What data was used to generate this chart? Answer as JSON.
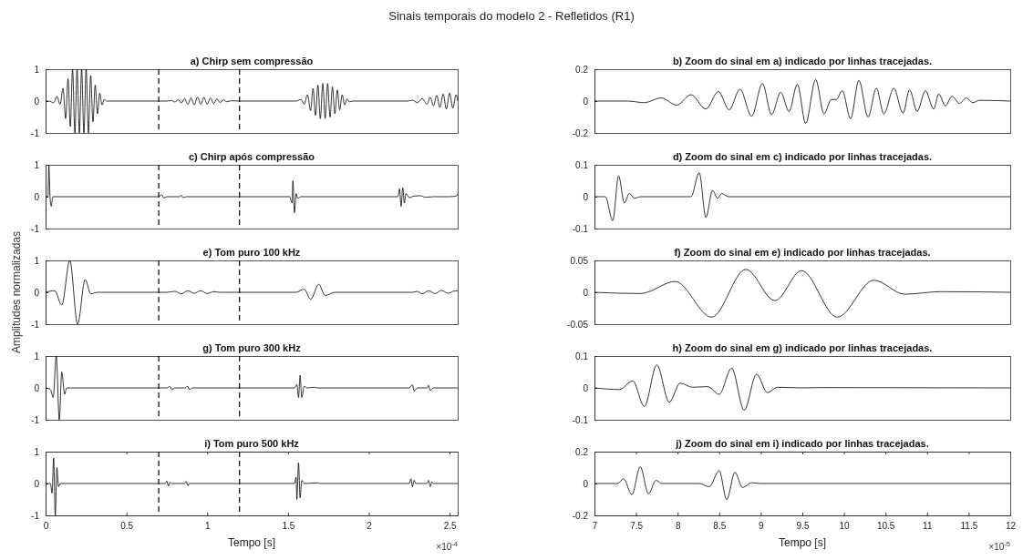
{
  "chart_data": [
    {
      "type": "line",
      "title": "a) Chirp sem compressão",
      "annotations": [
        "Sinais temporais do modelo 2 - Refletidos (R1)"
      ],
      "color": "#000000",
      "xlim": [
        0,
        2.55
      ],
      "ylim": [
        -1,
        1
      ],
      "yticks": [
        -1,
        0,
        1
      ],
      "tick_labels": "y",
      "ref_lines": [
        {
          "axis": "x",
          "value": 0.7,
          "line_style": "dashed"
        },
        {
          "axis": "x",
          "value": 1.2,
          "line_style": "dashed"
        }
      ],
      "x": [
        0,
        0.02,
        0.05,
        0.07,
        0.09,
        0.108,
        0.124,
        0.139,
        0.153,
        0.167,
        0.181,
        0.195,
        0.209,
        0.223,
        0.237,
        0.251,
        0.265,
        0.279,
        0.293,
        0.307,
        0.321,
        0.335,
        0.349,
        0.363,
        0.38,
        0.7,
        0.75,
        0.78,
        0.8,
        0.82,
        0.84,
        0.86,
        0.88,
        0.9,
        0.92,
        0.94,
        0.96,
        0.98,
        1.0,
        1.02,
        1.04,
        1.06,
        1.08,
        1.1,
        1.12,
        1.15,
        1.2,
        1.55,
        1.58,
        1.6,
        1.62,
        1.64,
        1.655,
        1.67,
        1.685,
        1.7,
        1.715,
        1.73,
        1.745,
        1.76,
        1.775,
        1.79,
        1.805,
        1.82,
        1.835,
        1.85,
        1.865,
        1.88,
        1.9,
        2.24,
        2.27,
        2.3,
        2.33,
        2.36,
        2.38,
        2.4,
        2.42,
        2.44,
        2.46,
        2.48,
        2.5,
        2.52,
        2.54,
        2.55
      ],
      "values": [
        0,
        0,
        -0.05,
        0.15,
        -0.1,
        0.4,
        -0.55,
        0.7,
        -0.8,
        1,
        -1,
        1,
        -1,
        1,
        -1,
        1,
        -1,
        0.8,
        -0.65,
        0.5,
        -0.4,
        0.25,
        -0.12,
        0.05,
        0,
        0,
        0,
        0.02,
        -0.03,
        0.05,
        -0.06,
        0.08,
        -0.1,
        0.1,
        -0.12,
        0.13,
        -0.1,
        0.12,
        -0.1,
        0.1,
        -0.08,
        0.07,
        -0.05,
        0.04,
        -0.02,
        0.01,
        0,
        0,
        0.05,
        -0.1,
        0.2,
        -0.3,
        0.4,
        -0.45,
        0.5,
        -0.55,
        0.55,
        -0.55,
        0.55,
        -0.5,
        0.45,
        -0.4,
        0.35,
        -0.28,
        0.2,
        -0.12,
        0.06,
        -0.02,
        0,
        0,
        0.03,
        -0.05,
        0.08,
        -0.1,
        0.12,
        -0.15,
        0.18,
        -0.2,
        0.22,
        -0.25,
        0.25,
        -0.22,
        0.2,
        0
      ]
    },
    {
      "type": "line",
      "title": "b) Zoom do sinal em a) indicado por linhas tracejadas.",
      "color": "#000000",
      "xlim": [
        7,
        12
      ],
      "ylim": [
        -0.2,
        0.2
      ],
      "yticks": [
        -0.2,
        0,
        0.2
      ],
      "tick_labels": "y",
      "x": [
        7,
        7.4,
        7.6,
        7.8,
        7.99,
        8.16,
        8.34,
        8.49,
        8.62,
        8.75,
        8.89,
        9.02,
        9.13,
        9.24,
        9.34,
        9.44,
        9.54,
        9.66,
        9.76,
        9.85,
        9.91,
        9.98,
        10.08,
        10.18,
        10.29,
        10.39,
        10.48,
        10.6,
        10.71,
        10.79,
        10.88,
        10.98,
        11.08,
        11.14,
        11.22,
        11.3,
        11.39,
        11.47,
        11.55,
        11.63,
        12
      ],
      "values": [
        0,
        0,
        -0.01,
        0.02,
        -0.025,
        0.04,
        -0.05,
        0.06,
        -0.055,
        0.075,
        -0.095,
        0.11,
        -0.085,
        0.055,
        -0.065,
        0.105,
        -0.14,
        0.135,
        -0.08,
        0.01,
        0.01,
        0.065,
        -0.11,
        0.13,
        -0.1,
        0.08,
        -0.08,
        0.08,
        -0.075,
        0.07,
        -0.065,
        0.065,
        -0.05,
        0.045,
        -0.03,
        0.03,
        -0.015,
        0.02,
        -0.01,
        0.005,
        0
      ]
    },
    {
      "type": "line",
      "title": "c) Chirp após compressão",
      "color": "#000000",
      "xlim": [
        0,
        2.55
      ],
      "ylim": [
        -1,
        1
      ],
      "yticks": [
        -1,
        0,
        1
      ],
      "tick_labels": "y",
      "ref_lines": [
        {
          "axis": "x",
          "value": 0.7,
          "line_style": "dashed"
        },
        {
          "axis": "x",
          "value": 1.2,
          "line_style": "dashed"
        }
      ],
      "x": [
        0,
        0.015,
        0.02,
        0.028,
        0.035,
        0.045,
        0.7,
        0.72,
        0.73,
        0.75,
        0.83,
        0.84,
        0.85,
        0.87,
        1.51,
        1.525,
        1.53,
        1.54,
        1.55,
        1.56,
        1.58,
        2.18,
        2.19,
        2.2,
        2.21,
        2.22,
        2.23,
        2.25,
        2.28,
        2.32,
        2.35,
        2.4,
        2.5,
        2.54,
        2.55
      ],
      "values": [
        0,
        0,
        1,
        -0.05,
        -0.3,
        0,
        0,
        0.06,
        -0.04,
        0,
        0,
        0.05,
        -0.03,
        0,
        0,
        -0.2,
        0.5,
        -0.5,
        0.1,
        -0.05,
        0,
        0,
        0.25,
        -0.3,
        0.28,
        -0.2,
        0.1,
        -0.03,
        0.02,
        0.03,
        -0.02,
        0,
        0,
        0.02,
        0.1
      ]
    },
    {
      "type": "line",
      "title": "d) Zoom do sinal em c) indicado por linhas tracejadas.",
      "color": "#000000",
      "xlim": [
        7,
        12
      ],
      "ylim": [
        -0.1,
        0.1
      ],
      "yticks": [
        -0.1,
        0,
        0.1
      ],
      "tick_labels": "y",
      "x": [
        7,
        7.13,
        7.22,
        7.29,
        7.36,
        7.42,
        7.48,
        7.56,
        8.16,
        8.26,
        8.34,
        8.42,
        8.48,
        8.53,
        8.61,
        12
      ],
      "values": [
        0,
        0,
        -0.075,
        0.065,
        -0.02,
        0.01,
        -0.005,
        0,
        0,
        0.075,
        -0.065,
        0.02,
        -0.005,
        0.01,
        0,
        0
      ]
    },
    {
      "type": "line",
      "title": "e) Tom puro 100 kHz",
      "ylabel": "Amplitudes normalizadas",
      "color": "#000000",
      "xlim": [
        0,
        2.55
      ],
      "ylim": [
        -1,
        1
      ],
      "yticks": [
        -1,
        0,
        1
      ],
      "tick_labels": "y",
      "ref_lines": [
        {
          "axis": "x",
          "value": 0.7,
          "line_style": "dashed"
        },
        {
          "axis": "x",
          "value": 1.2,
          "line_style": "dashed"
        }
      ],
      "x": [
        0,
        0.056,
        0.1,
        0.15,
        0.198,
        0.245,
        0.28,
        0.32,
        0.75,
        0.8,
        0.84,
        0.88,
        0.92,
        0.96,
        1.0,
        1.04,
        1.08,
        1.55,
        1.6,
        1.64,
        1.69,
        1.73,
        1.79,
        2.27,
        2.3,
        2.33,
        2.37,
        2.41,
        2.45,
        2.49,
        2.52,
        2.55
      ],
      "values": [
        0,
        0.05,
        -0.4,
        1,
        -1,
        0.4,
        -0.05,
        0,
        0,
        0.03,
        -0.05,
        0.05,
        -0.03,
        0.05,
        -0.04,
        0.02,
        0,
        0,
        0.1,
        -0.22,
        0.25,
        -0.1,
        0,
        0,
        0.03,
        -0.05,
        0.05,
        -0.04,
        0.06,
        -0.03,
        0.03,
        0.05
      ]
    },
    {
      "type": "line",
      "title": "f) Zoom do sinal em e) indicado por linhas tracejadas.",
      "color": "#000000",
      "xlim": [
        7,
        12
      ],
      "ylim": [
        -0.05,
        0.05
      ],
      "yticks": [
        -0.05,
        0,
        0.05
      ],
      "tick_labels": "y",
      "x": [
        7,
        7.56,
        7.63,
        7.97,
        8.41,
        8.82,
        9.17,
        9.49,
        9.92,
        10.36,
        10.73,
        11.16,
        12
      ],
      "values": [
        0,
        -0.002,
        0,
        0.017,
        -0.039,
        0.036,
        -0.013,
        0.034,
        -0.039,
        0.019,
        -0.003,
        0.001,
        0
      ]
    },
    {
      "type": "line",
      "title": "g) Tom puro 300 kHz",
      "color": "#000000",
      "xlim": [
        0,
        2.55
      ],
      "ylim": [
        -1,
        1
      ],
      "yticks": [
        -1,
        0,
        1
      ],
      "tick_labels": "y",
      "ref_lines": [
        {
          "axis": "x",
          "value": 0.7,
          "line_style": "dashed"
        },
        {
          "axis": "x",
          "value": 1.2,
          "line_style": "dashed"
        }
      ],
      "x": [
        0,
        0.03,
        0.047,
        0.066,
        0.085,
        0.1,
        0.118,
        0.13,
        0.75,
        0.77,
        0.78,
        0.8,
        0.86,
        0.88,
        0.89,
        0.91,
        1.54,
        1.555,
        1.565,
        1.575,
        1.585,
        1.6,
        1.62,
        1.66,
        1.68,
        2.25,
        2.27,
        2.28,
        2.3,
        2.36,
        2.37,
        2.38,
        2.4,
        2.55
      ],
      "values": [
        0,
        -0.05,
        -0.3,
        1,
        -1,
        0.5,
        -0.2,
        0,
        0,
        0.05,
        -0.05,
        0,
        0,
        0.05,
        -0.05,
        0,
        0,
        0.1,
        -0.3,
        0.4,
        -0.3,
        0.05,
        0,
        0.02,
        0,
        0,
        0.1,
        -0.1,
        0,
        0,
        0.08,
        -0.08,
        0,
        0
      ]
    },
    {
      "type": "line",
      "title": "h) Zoom do sinal em g) indicado por linhas tracejadas.",
      "color": "#000000",
      "xlim": [
        7,
        12
      ],
      "ylim": [
        -0.1,
        0.1
      ],
      "yticks": [
        -0.1,
        0,
        0.1
      ],
      "tick_labels": "y",
      "x": [
        7,
        7.3,
        7.46,
        7.6,
        7.75,
        7.9,
        8.03,
        8.18,
        8.36,
        8.5,
        8.65,
        8.8,
        8.95,
        9.08,
        9.2,
        9.51,
        9.71,
        12
      ],
      "values": [
        0,
        -0.005,
        0.022,
        -0.058,
        0.072,
        -0.045,
        0.015,
        0.002,
        0.004,
        -0.02,
        0.062,
        -0.07,
        0.043,
        -0.015,
        0.002,
        0,
        0.001,
        0
      ]
    },
    {
      "type": "line",
      "title": "i) Tom puro 500 kHz",
      "xlabel": "Tempo [s]",
      "annotations": [
        "×10$^{-4}$"
      ],
      "color": "#000000",
      "xlim": [
        0,
        2.55
      ],
      "ylim": [
        -1,
        1
      ],
      "yticks": [
        -1,
        0,
        1
      ],
      "xticks": [
        0,
        0.5,
        1,
        1.5,
        2,
        2.5
      ],
      "ref_lines": [
        {
          "axis": "x",
          "value": 0.7,
          "line_style": "dashed"
        },
        {
          "axis": "x",
          "value": 1.2,
          "line_style": "dashed"
        }
      ],
      "x": [
        0,
        0.03,
        0.04,
        0.05,
        0.06,
        0.07,
        0.08,
        0.09,
        0.74,
        0.75,
        0.76,
        0.77,
        0.78,
        0.86,
        0.87,
        0.88,
        0.89,
        1.54,
        1.55,
        1.555,
        1.565,
        1.575,
        1.585,
        1.6,
        1.68,
        1.7,
        2.25,
        2.26,
        2.27,
        2.28,
        2.29,
        2.36,
        2.37,
        2.38,
        2.39,
        2.4,
        2.55
      ],
      "values": [
        0,
        0,
        -0.3,
        0.8,
        -1,
        0.5,
        -0.1,
        0,
        0,
        0.08,
        -0.08,
        0.04,
        0,
        0,
        0.07,
        -0.07,
        0,
        0,
        0.2,
        -0.5,
        0.65,
        -0.45,
        0.1,
        0,
        0.02,
        0,
        0,
        0.15,
        -0.1,
        0.1,
        0,
        0,
        0.1,
        -0.1,
        0.05,
        0,
        0
      ]
    },
    {
      "type": "line",
      "title": "j) Zoom do sinal em i) indicado por linhas tracejadas.",
      "xlabel": "Tempo [s]",
      "annotations": [
        "×10$^{-5}$"
      ],
      "color": "#000000",
      "xlim": [
        7,
        12
      ],
      "ylim": [
        -0.2,
        0.2
      ],
      "yticks": [
        -0.2,
        0,
        0.2
      ],
      "xticks": [
        7,
        7.5,
        8,
        8.5,
        9,
        9.5,
        10,
        10.5,
        11,
        11.5,
        12
      ],
      "x": [
        7,
        7.28,
        7.35,
        7.45,
        7.55,
        7.65,
        7.74,
        7.81,
        8.26,
        8.38,
        8.5,
        8.59,
        8.69,
        8.78,
        8.89,
        9.0,
        12
      ],
      "values": [
        0,
        0,
        0.03,
        -0.07,
        0.105,
        -0.065,
        0.02,
        0,
        0,
        -0.02,
        0.08,
        -0.1,
        0.07,
        -0.025,
        0.005,
        0,
        0
      ]
    }
  ]
}
